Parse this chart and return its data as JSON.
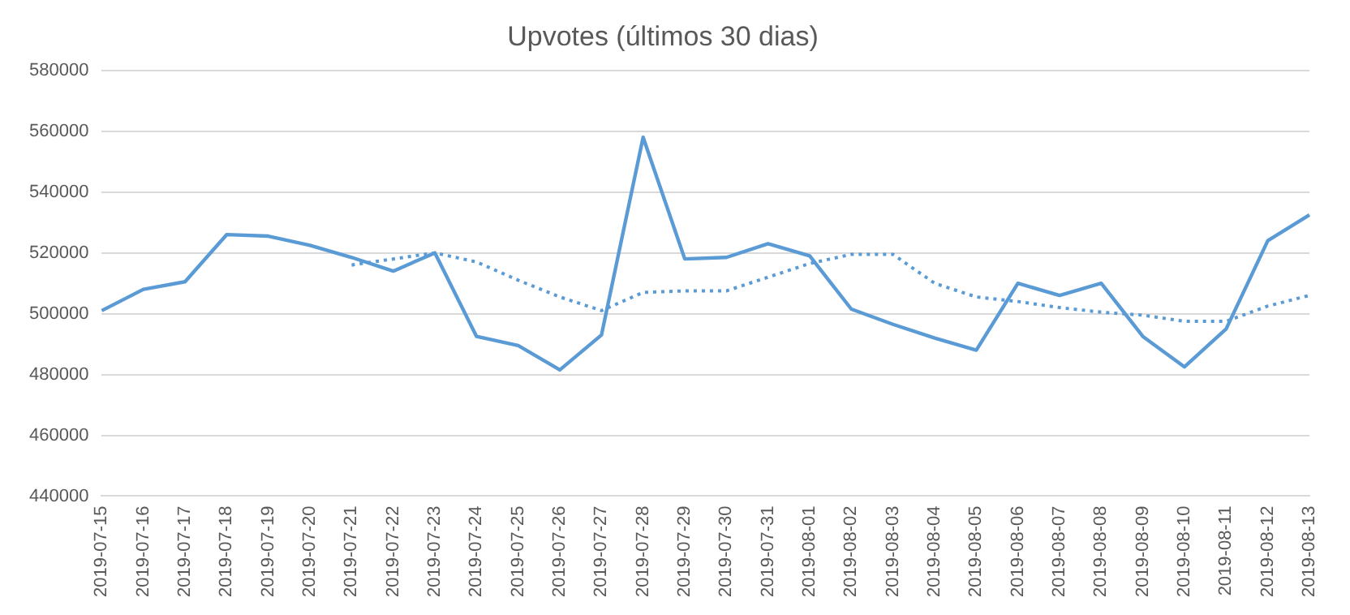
{
  "chart_data": {
    "type": "line",
    "title": "Upvotes (últimos 30 dias)",
    "categories": [
      "2019-07-15",
      "2019-07-16",
      "2019-07-17",
      "2019-07-18",
      "2019-07-19",
      "2019-07-20",
      "2019-07-21",
      "2019-07-22",
      "2019-07-23",
      "2019-07-24",
      "2019-07-25",
      "2019-07-26",
      "2019-07-27",
      "2019-07-28",
      "2019-07-29",
      "2019-07-30",
      "2019-07-31",
      "2019-08-01",
      "2019-08-02",
      "2019-08-03",
      "2019-08-04",
      "2019-08-05",
      "2019-08-06",
      "2019-08-07",
      "2019-08-08",
      "2019-08-09",
      "2019-08-10",
      "2019-08-11",
      "2019-08-12",
      "2019-08-13"
    ],
    "series": [
      {
        "color": "#5b9bd5",
        "line_style": "solid",
        "values": [
          501000,
          508000,
          510500,
          526000,
          525500,
          522500,
          518500,
          514000,
          520000,
          492500,
          489500,
          481500,
          493000,
          558000,
          518000,
          518500,
          523000,
          519000,
          501500,
          496500,
          492000,
          488000,
          510000,
          506000,
          510000,
          492500,
          482500,
          495000,
          524000,
          532500
        ]
      },
      {
        "color": "#5b9bd5",
        "line_style": "dotted",
        "values": [
          null,
          null,
          null,
          null,
          null,
          null,
          516000,
          518000,
          520000,
          517000,
          511000,
          505500,
          501000,
          507000,
          507500,
          507500,
          512000,
          516500,
          519500,
          519500,
          510000,
          505500,
          504000,
          502000,
          500500,
          499500,
          497500,
          497500,
          502500,
          506000
        ]
      }
    ],
    "ylim": [
      440000,
      580000
    ],
    "yticks": [
      440000,
      460000,
      480000,
      500000,
      520000,
      540000,
      560000,
      580000
    ],
    "grid": "y",
    "legend": false,
    "marker": "none"
  }
}
